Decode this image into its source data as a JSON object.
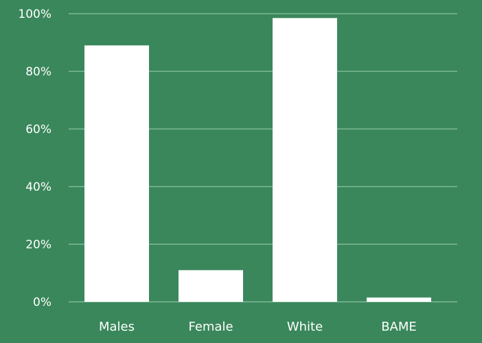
{
  "colors": {
    "background": "#3a875b",
    "bar": "#ffffff",
    "gridline": "#8cc2a2",
    "text": "#ffffff"
  },
  "chart_data": {
    "type": "bar",
    "categories": [
      "Males",
      "Female",
      "White",
      "BAME"
    ],
    "values": [
      89,
      11,
      98.5,
      1.5
    ],
    "ylim": [
      0,
      100
    ],
    "yticks": [
      0,
      20,
      40,
      60,
      80,
      100
    ],
    "ytick_labels": [
      "0%",
      "20%",
      "40%",
      "60%",
      "80%",
      "100%"
    ],
    "grid": true,
    "legend": "none"
  }
}
